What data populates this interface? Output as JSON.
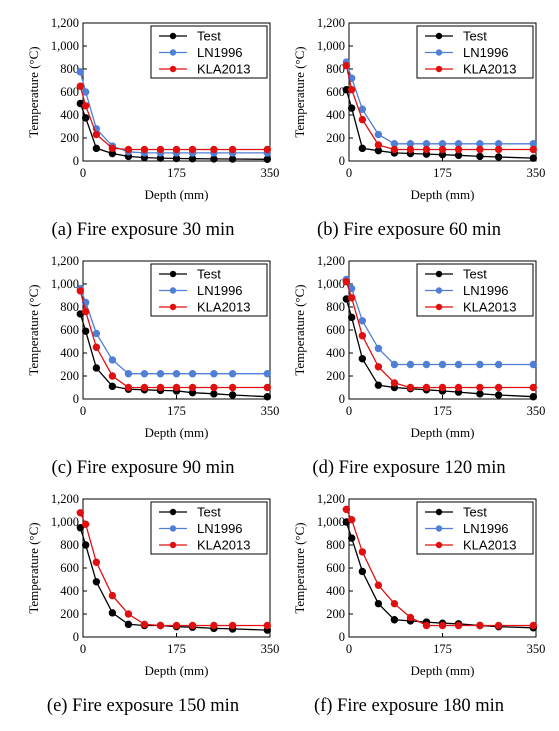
{
  "colors": {
    "Test": "#000000",
    "LN1996": "#4f7fd6",
    "KLA2013": "#e01010"
  },
  "chart_data": [
    {
      "type": "line",
      "caption": "(a) Fire exposure 30 min",
      "xlabel": "Depth (mm)",
      "ylabel": "Temperature (°C)",
      "xlim": [
        0,
        350
      ],
      "ylim": [
        0,
        1200
      ],
      "xticks": [
        "0",
        "175",
        "350"
      ],
      "yticks": [
        "0",
        "200",
        "400",
        "600",
        "800",
        "1,000",
        "1,200"
      ],
      "legend": "top-right",
      "grid": false,
      "series": [
        {
          "name": "Test",
          "x": [
            -5,
            5,
            25,
            55,
            85,
            115,
            145,
            175,
            205,
            245,
            280,
            345
          ],
          "y": [
            500,
            375,
            110,
            65,
            40,
            30,
            25,
            22,
            20,
            18,
            17,
            15
          ]
        },
        {
          "name": "LN1996",
          "x": [
            -5,
            5,
            25,
            55,
            85,
            115,
            145,
            175,
            205,
            245,
            280,
            345
          ],
          "y": [
            775,
            600,
            280,
            130,
            80,
            70,
            70,
            70,
            70,
            70,
            70,
            70
          ]
        },
        {
          "name": "KLA2013",
          "x": [
            -5,
            5,
            25,
            55,
            85,
            115,
            145,
            175,
            205,
            245,
            280,
            345
          ],
          "y": [
            650,
            480,
            230,
            110,
            100,
            100,
            100,
            100,
            100,
            100,
            100,
            100
          ]
        }
      ]
    },
    {
      "type": "line",
      "caption": "(b) Fire exposure 60 min",
      "xlabel": "Depth (mm)",
      "ylabel": "Temperature (°C)",
      "xlim": [
        0,
        350
      ],
      "ylim": [
        0,
        1200
      ],
      "xticks": [
        "0",
        "175",
        "350"
      ],
      "yticks": [
        "0",
        "200",
        "400",
        "600",
        "800",
        "1,000",
        "1,200"
      ],
      "legend": "top-right",
      "grid": false,
      "series": [
        {
          "name": "Test",
          "x": [
            -5,
            5,
            25,
            55,
            85,
            115,
            145,
            175,
            205,
            245,
            280,
            345
          ],
          "y": [
            620,
            460,
            110,
            90,
            70,
            65,
            60,
            55,
            50,
            40,
            35,
            25
          ]
        },
        {
          "name": "LN1996",
          "x": [
            -5,
            5,
            25,
            55,
            85,
            115,
            145,
            175,
            205,
            245,
            280,
            345
          ],
          "y": [
            860,
            720,
            450,
            230,
            150,
            150,
            150,
            150,
            150,
            150,
            150,
            150
          ]
        },
        {
          "name": "KLA2013",
          "x": [
            -5,
            5,
            25,
            55,
            85,
            115,
            145,
            175,
            205,
            245,
            280,
            345
          ],
          "y": [
            830,
            620,
            360,
            140,
            100,
            100,
            100,
            100,
            100,
            100,
            100,
            100
          ]
        }
      ]
    },
    {
      "type": "line",
      "caption": "(c) Fire exposure 90 min",
      "xlabel": "Depth (mm)",
      "ylabel": "Temperature (°C)",
      "xlim": [
        0,
        350
      ],
      "ylim": [
        0,
        1200
      ],
      "xticks": [
        "0",
        "175",
        "350"
      ],
      "yticks": [
        "0",
        "200",
        "400",
        "600",
        "800",
        "1,000",
        "1,200"
      ],
      "legend": "top-right",
      "grid": false,
      "series": [
        {
          "name": "Test",
          "x": [
            -5,
            5,
            25,
            55,
            85,
            115,
            145,
            175,
            205,
            245,
            280,
            345
          ],
          "y": [
            740,
            590,
            270,
            110,
            85,
            80,
            75,
            70,
            55,
            45,
            35,
            20
          ]
        },
        {
          "name": "LN1996",
          "x": [
            -5,
            5,
            25,
            55,
            85,
            115,
            145,
            175,
            205,
            245,
            280,
            345
          ],
          "y": [
            960,
            840,
            570,
            340,
            220,
            220,
            220,
            220,
            220,
            220,
            220,
            220
          ]
        },
        {
          "name": "KLA2013",
          "x": [
            -5,
            5,
            25,
            55,
            85,
            115,
            145,
            175,
            205,
            245,
            280,
            345
          ],
          "y": [
            940,
            760,
            450,
            200,
            100,
            100,
            100,
            100,
            100,
            100,
            100,
            100
          ]
        }
      ]
    },
    {
      "type": "line",
      "caption": "(d) Fire exposure 120 min",
      "xlabel": "Depth (mm)",
      "ylabel": "Temperature (°C)",
      "xlim": [
        0,
        350
      ],
      "ylim": [
        0,
        1200
      ],
      "xticks": [
        "0",
        "175",
        "350"
      ],
      "yticks": [
        "0",
        "200",
        "400",
        "600",
        "800",
        "1,000",
        "1,200"
      ],
      "legend": "top-right",
      "grid": false,
      "series": [
        {
          "name": "Test",
          "x": [
            -5,
            5,
            25,
            55,
            85,
            115,
            145,
            175,
            205,
            245,
            280,
            345
          ],
          "y": [
            870,
            710,
            350,
            120,
            100,
            90,
            80,
            70,
            60,
            45,
            35,
            20
          ]
        },
        {
          "name": "LN1996",
          "x": [
            -5,
            5,
            25,
            55,
            85,
            115,
            145,
            175,
            205,
            245,
            280,
            345
          ],
          "y": [
            1040,
            960,
            680,
            440,
            300,
            300,
            300,
            300,
            300,
            300,
            300,
            300
          ]
        },
        {
          "name": "KLA2013",
          "x": [
            -5,
            5,
            25,
            55,
            85,
            115,
            145,
            175,
            205,
            245,
            280,
            345
          ],
          "y": [
            1020,
            880,
            550,
            280,
            140,
            100,
            100,
            100,
            100,
            100,
            100,
            100
          ]
        }
      ]
    },
    {
      "type": "line",
      "caption": "(e) Fire exposure 150 min",
      "xlabel": "Depth (mm)",
      "ylabel": "Temperature (°C)",
      "xlim": [
        0,
        350
      ],
      "ylim": [
        0,
        1200
      ],
      "xticks": [
        "0",
        "175",
        "350"
      ],
      "yticks": [
        "0",
        "200",
        "400",
        "600",
        "800",
        "1,000",
        "1,200"
      ],
      "legend": "top-right",
      "grid": false,
      "series": [
        {
          "name": "Test",
          "x": [
            -5,
            5,
            25,
            55,
            85,
            115,
            145,
            175,
            205,
            245,
            280,
            345
          ],
          "y": [
            950,
            800,
            480,
            210,
            110,
            100,
            100,
            90,
            85,
            75,
            70,
            60
          ]
        },
        {
          "name": "KLA2013",
          "x": [
            -5,
            5,
            25,
            55,
            85,
            115,
            145,
            175,
            205,
            245,
            280,
            345
          ],
          "y": [
            1080,
            980,
            650,
            360,
            200,
            110,
            100,
            100,
            100,
            100,
            100,
            100
          ]
        }
      ],
      "legend_entries": [
        "Test",
        "LN1996",
        "KLA2013"
      ]
    },
    {
      "type": "line",
      "caption": "(f) Fire exposure 180 min",
      "xlabel": "Depth (mm)",
      "ylabel": "Temperature (°C)",
      "xlim": [
        0,
        350
      ],
      "ylim": [
        0,
        1200
      ],
      "xticks": [
        "0",
        "175",
        "350"
      ],
      "yticks": [
        "0",
        "200",
        "400",
        "600",
        "800",
        "1,000",
        "1,200"
      ],
      "legend": "top-right",
      "grid": false,
      "series": [
        {
          "name": "Test",
          "x": [
            -5,
            5,
            25,
            55,
            85,
            115,
            145,
            175,
            205,
            245,
            280,
            345
          ],
          "y": [
            1000,
            860,
            570,
            290,
            150,
            140,
            130,
            120,
            115,
            100,
            90,
            80
          ]
        },
        {
          "name": "KLA2013",
          "x": [
            -5,
            5,
            25,
            55,
            85,
            115,
            145,
            175,
            205,
            245,
            280,
            345
          ],
          "y": [
            1110,
            1020,
            740,
            450,
            290,
            170,
            100,
            100,
            100,
            100,
            100,
            100
          ]
        }
      ],
      "legend_entries": [
        "Test",
        "LN1996",
        "KLA2013"
      ]
    }
  ]
}
